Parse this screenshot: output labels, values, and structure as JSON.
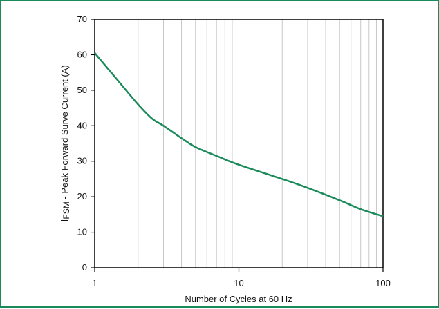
{
  "chart_data": {
    "type": "line",
    "xlabel": "Number of Cycles at 60 Hz",
    "ylabel": {
      "prefix": "I",
      "subscript": "FSM",
      "rest": " - Peak Forward Surve Current (A)"
    },
    "x_scale": "log",
    "xlim": [
      1,
      100
    ],
    "ylim": [
      0,
      70
    ],
    "x_ticks": [
      1,
      10,
      100
    ],
    "x_tick_labels": [
      "1",
      "10",
      "100"
    ],
    "y_ticks": [
      0,
      10,
      20,
      30,
      40,
      50,
      60,
      70
    ],
    "y_tick_labels": [
      "0",
      "10",
      "20",
      "30",
      "40",
      "50",
      "60",
      "70"
    ],
    "grid": true,
    "series": [
      {
        "color": "#1a8a5a",
        "x": [
          1,
          1.5,
          2,
          2.5,
          3,
          4,
          5,
          7,
          10,
          20,
          30,
          50,
          70,
          100
        ],
        "y": [
          60.5,
          52,
          46,
          42,
          40,
          36.5,
          34,
          31.5,
          29,
          25,
          22.5,
          19,
          16.5,
          14.5
        ]
      }
    ]
  }
}
